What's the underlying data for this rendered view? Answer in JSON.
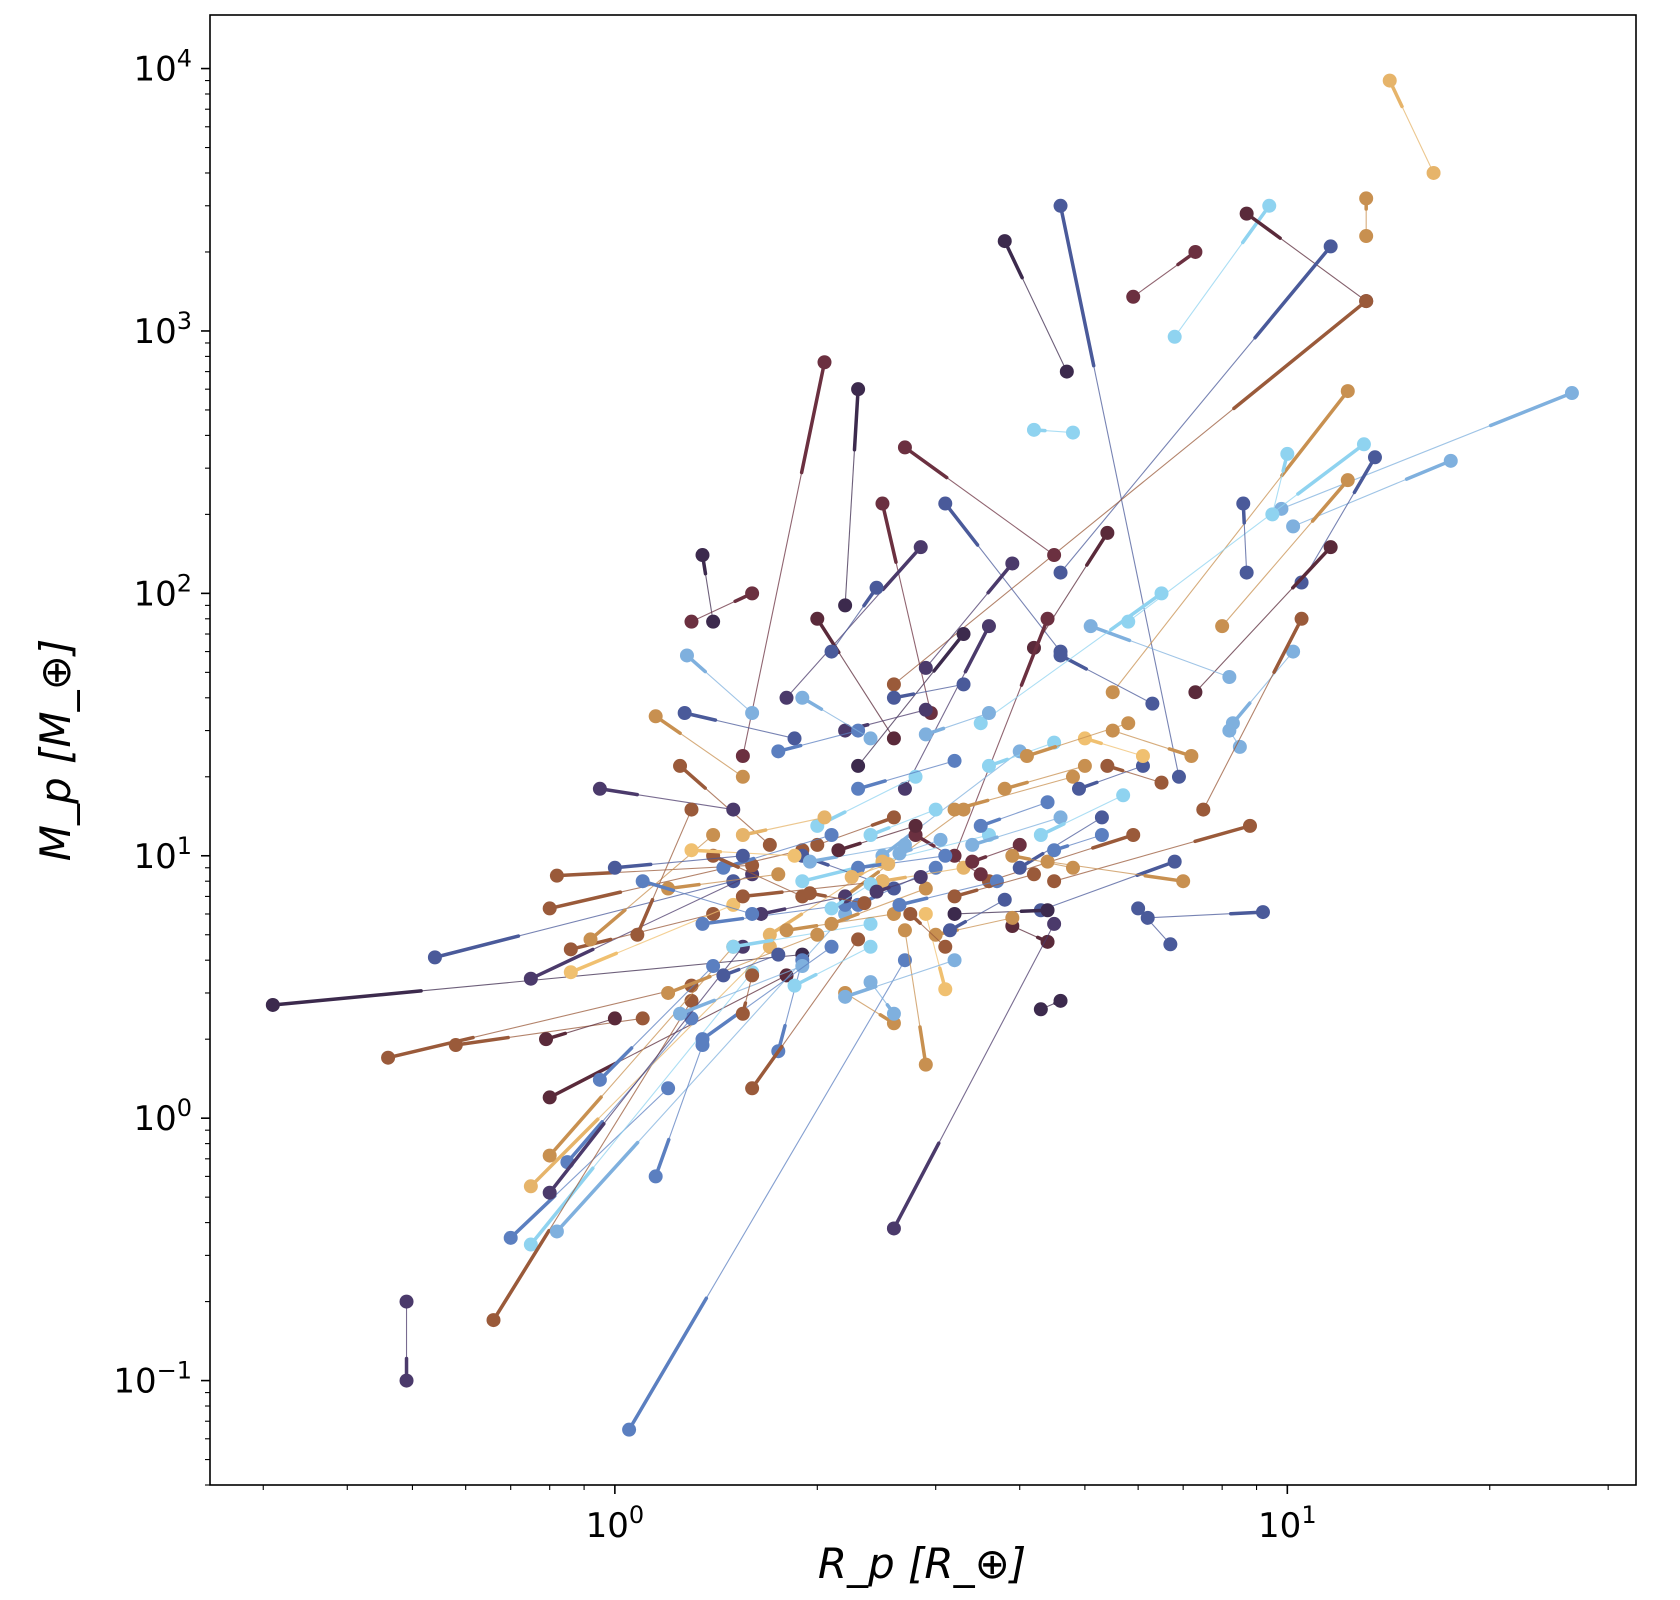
{
  "chart_data": {
    "type": "scatter",
    "subtype": "connected-pairs",
    "title": "",
    "xlabel": "R_p [R_⊕]",
    "ylabel": "M_p [M_⊕]",
    "xscale": "log",
    "yscale": "log",
    "xlim": [
      0.25,
      33
    ],
    "ylim": [
      0.04,
      16000
    ],
    "grid": false,
    "legend": "none",
    "x_ticks": [
      {
        "value": 1,
        "base": "10",
        "exp": "0"
      },
      {
        "value": 10,
        "base": "10",
        "exp": "1"
      }
    ],
    "y_ticks": [
      {
        "value": 0.1,
        "base": "10",
        "exp": "−1"
      },
      {
        "value": 1,
        "base": "10",
        "exp": "0"
      },
      {
        "value": 10,
        "base": "10",
        "exp": "1"
      },
      {
        "value": 100,
        "base": "10",
        "exp": "2"
      },
      {
        "value": 1000,
        "base": "10",
        "exp": "3"
      },
      {
        "value": 10000,
        "base": "10",
        "exp": "4"
      }
    ],
    "palette": [
      "#3c2a4d",
      "#4b3a6b",
      "#4a5a9a",
      "#5b7fc0",
      "#7fb0de",
      "#8fd3f0",
      "#e6b46a",
      "#f0c070",
      "#c89050",
      "#9a5a3a",
      "#6b3040",
      "#5a2a3a"
    ],
    "pairs": [
      {
        "x1": 14.2,
        "y1": 9000,
        "x2": 16.5,
        "y2": 4000,
        "color": "#e6b46a"
      },
      {
        "x1": 13.1,
        "y1": 3200,
        "x2": 13.1,
        "y2": 2300,
        "color": "#c89050"
      },
      {
        "x1": 4.6,
        "y1": 3000,
        "x2": 6.9,
        "y2": 20,
        "color": "#4a5a9a"
      },
      {
        "x1": 9.4,
        "y1": 3000,
        "x2": 6.8,
        "y2": 950,
        "color": "#8fd3f0"
      },
      {
        "x1": 8.7,
        "y1": 2800,
        "x2": 13.1,
        "y2": 1300,
        "color": "#5a2a3a"
      },
      {
        "x1": 3.8,
        "y1": 2200,
        "x2": 4.7,
        "y2": 700,
        "color": "#3c2a4d"
      },
      {
        "x1": 7.3,
        "y1": 2000,
        "x2": 5.9,
        "y2": 1350,
        "color": "#6b3040"
      },
      {
        "x1": 11.6,
        "y1": 2100,
        "x2": 4.6,
        "y2": 120,
        "color": "#4a5a9a"
      },
      {
        "x1": 13.1,
        "y1": 1300,
        "x2": 2.6,
        "y2": 45,
        "color": "#9a5a3a"
      },
      {
        "x1": 2.05,
        "y1": 760,
        "x2": 1.55,
        "y2": 24,
        "color": "#6b3040"
      },
      {
        "x1": 2.3,
        "y1": 600,
        "x2": 2.2,
        "y2": 90,
        "color": "#3c2a4d"
      },
      {
        "x1": 4.2,
        "y1": 420,
        "x2": 4.8,
        "y2": 410,
        "color": "#8fd3f0"
      },
      {
        "x1": 12.3,
        "y1": 590,
        "x2": 5.5,
        "y2": 42,
        "color": "#c89050"
      },
      {
        "x1": 26.5,
        "y1": 580,
        "x2": 9.8,
        "y2": 210,
        "color": "#7fb0de"
      },
      {
        "x1": 17.5,
        "y1": 320,
        "x2": 10.2,
        "y2": 180,
        "color": "#7fb0de"
      },
      {
        "x1": 13.5,
        "y1": 330,
        "x2": 10.5,
        "y2": 110,
        "color": "#4a5a9a"
      },
      {
        "x1": 13.0,
        "y1": 370,
        "x2": 5.8,
        "y2": 78,
        "color": "#8fd3f0"
      },
      {
        "x1": 10.0,
        "y1": 340,
        "x2": 9.5,
        "y2": 200,
        "color": "#8fd3f0"
      },
      {
        "x1": 12.3,
        "y1": 270,
        "x2": 8.0,
        "y2": 75,
        "color": "#c89050"
      },
      {
        "x1": 2.7,
        "y1": 360,
        "x2": 4.5,
        "y2": 140,
        "color": "#6b3040"
      },
      {
        "x1": 3.1,
        "y1": 220,
        "x2": 4.6,
        "y2": 60,
        "color": "#4a5a9a"
      },
      {
        "x1": 2.5,
        "y1": 220,
        "x2": 2.95,
        "y2": 35,
        "color": "#6b3040"
      },
      {
        "x1": 8.6,
        "y1": 220,
        "x2": 8.7,
        "y2": 120,
        "color": "#4a5a9a"
      },
      {
        "x1": 11.6,
        "y1": 150,
        "x2": 7.3,
        "y2": 42,
        "color": "#5a2a3a"
      },
      {
        "x1": 1.35,
        "y1": 140,
        "x2": 1.4,
        "y2": 78,
        "color": "#3c2a4d"
      },
      {
        "x1": 1.6,
        "y1": 100,
        "x2": 1.3,
        "y2": 78,
        "color": "#6b3040"
      },
      {
        "x1": 2.85,
        "y1": 150,
        "x2": 1.8,
        "y2": 40,
        "color": "#4b3a6b"
      },
      {
        "x1": 3.9,
        "y1": 130,
        "x2": 2.9,
        "y2": 52,
        "color": "#4b3a6b"
      },
      {
        "x1": 5.4,
        "y1": 170,
        "x2": 4.2,
        "y2": 62,
        "color": "#5a2a3a"
      },
      {
        "x1": 1.28,
        "y1": 58,
        "x2": 1.6,
        "y2": 35,
        "color": "#7fb0de"
      },
      {
        "x1": 1.27,
        "y1": 35,
        "x2": 1.85,
        "y2": 28,
        "color": "#4a5a9a"
      },
      {
        "x1": 1.15,
        "y1": 34,
        "x2": 1.55,
        "y2": 20,
        "color": "#c89050"
      },
      {
        "x1": 1.25,
        "y1": 22,
        "x2": 1.7,
        "y2": 11,
        "color": "#9a5a3a"
      },
      {
        "x1": 0.95,
        "y1": 18,
        "x2": 1.5,
        "y2": 15,
        "color": "#4b3a6b"
      },
      {
        "x1": 2.0,
        "y1": 80,
        "x2": 2.6,
        "y2": 28,
        "color": "#5a2a3a"
      },
      {
        "x1": 3.3,
        "y1": 70,
        "x2": 2.3,
        "y2": 22,
        "color": "#3c2a4d"
      },
      {
        "x1": 2.45,
        "y1": 105,
        "x2": 2.1,
        "y2": 60,
        "color": "#4a5a9a"
      },
      {
        "x1": 3.6,
        "y1": 75,
        "x2": 2.7,
        "y2": 18,
        "color": "#4b3a6b"
      },
      {
        "x1": 4.4,
        "y1": 80,
        "x2": 3.2,
        "y2": 10,
        "color": "#6b3040"
      },
      {
        "x1": 4.6,
        "y1": 58,
        "x2": 6.3,
        "y2": 38,
        "color": "#4a5a9a"
      },
      {
        "x1": 5.1,
        "y1": 75,
        "x2": 8.2,
        "y2": 48,
        "color": "#7fb0de"
      },
      {
        "x1": 6.5,
        "y1": 100,
        "x2": 3.5,
        "y2": 32,
        "color": "#8fd3f0"
      },
      {
        "x1": 8.3,
        "y1": 32,
        "x2": 10.2,
        "y2": 60,
        "color": "#7fb0de"
      },
      {
        "x1": 8.2,
        "y1": 30,
        "x2": 8.5,
        "y2": 26,
        "color": "#7fb0de"
      },
      {
        "x1": 7.2,
        "y1": 24,
        "x2": 5.5,
        "y2": 30,
        "color": "#c89050"
      },
      {
        "x1": 10.5,
        "y1": 80,
        "x2": 7.5,
        "y2": 15,
        "color": "#9a5a3a"
      },
      {
        "x1": 5.9,
        "y1": 12,
        "x2": 3.6,
        "y2": 8,
        "color": "#9a5a3a"
      },
      {
        "x1": 8.8,
        "y1": 13,
        "x2": 4.5,
        "y2": 8,
        "color": "#9a5a3a"
      },
      {
        "x1": 6.8,
        "y1": 9.5,
        "x2": 4.3,
        "y2": 6.2,
        "color": "#4a5a9a"
      },
      {
        "x1": 7.0,
        "y1": 8.0,
        "x2": 4.4,
        "y2": 9.5,
        "color": "#c89050"
      },
      {
        "x1": 6.0,
        "y1": 6.3,
        "x2": 6.7,
        "y2": 4.6,
        "color": "#4a5a9a"
      },
      {
        "x1": 9.2,
        "y1": 6.1,
        "x2": 6.2,
        "y2": 5.8,
        "color": "#4a5a9a"
      },
      {
        "x1": 4.4,
        "y1": 6.2,
        "x2": 3.2,
        "y2": 6.0,
        "color": "#3c2a4d"
      },
      {
        "x1": 4.4,
        "y1": 4.7,
        "x2": 3.9,
        "y2": 5.4,
        "color": "#5a2a3a"
      },
      {
        "x1": 4.6,
        "y1": 2.8,
        "x2": 4.3,
        "y2": 2.6,
        "color": "#3c2a4d"
      },
      {
        "x1": 0.31,
        "y1": 2.7,
        "x2": 1.9,
        "y2": 4.2,
        "color": "#3c2a4d"
      },
      {
        "x1": 0.54,
        "y1": 4.1,
        "x2": 1.5,
        "y2": 8.0,
        "color": "#4a5a9a"
      },
      {
        "x1": 0.75,
        "y1": 3.4,
        "x2": 1.6,
        "y2": 8.5,
        "color": "#4b3a6b"
      },
      {
        "x1": 0.46,
        "y1": 1.7,
        "x2": 1.3,
        "y2": 3.2,
        "color": "#9a5a3a"
      },
      {
        "x1": 0.58,
        "y1": 1.9,
        "x2": 1.1,
        "y2": 2.4,
        "color": "#9a5a3a"
      },
      {
        "x1": 0.8,
        "y1": 1.2,
        "x2": 1.8,
        "y2": 3.5,
        "color": "#5a2a3a"
      },
      {
        "x1": 0.79,
        "y1": 2.0,
        "x2": 1.0,
        "y2": 2.4,
        "color": "#5a2a3a"
      },
      {
        "x1": 0.82,
        "y1": 8.4,
        "x2": 1.6,
        "y2": 9.2,
        "color": "#9a5a3a"
      },
      {
        "x1": 0.8,
        "y1": 6.3,
        "x2": 1.9,
        "y2": 10.5,
        "color": "#9a5a3a"
      },
      {
        "x1": 0.86,
        "y1": 4.4,
        "x2": 1.4,
        "y2": 6.0,
        "color": "#9a5a3a"
      },
      {
        "x1": 0.86,
        "y1": 3.6,
        "x2": 1.5,
        "y2": 6.5,
        "color": "#f0c070"
      },
      {
        "x1": 0.92,
        "y1": 4.8,
        "x2": 1.4,
        "y2": 12,
        "color": "#c89050"
      },
      {
        "x1": 1.08,
        "y1": 5.0,
        "x2": 1.3,
        "y2": 15,
        "color": "#9a5a3a"
      },
      {
        "x1": 0.49,
        "y1": 0.1,
        "x2": 0.49,
        "y2": 0.2,
        "color": "#4b3a6b"
      },
      {
        "x1": 1.05,
        "y1": 0.065,
        "x2": 2.7,
        "y2": 4.0,
        "color": "#5b7fc0"
      },
      {
        "x1": 2.6,
        "y1": 0.38,
        "x2": 4.5,
        "y2": 5.5,
        "color": "#4b3a6b"
      },
      {
        "x1": 0.7,
        "y1": 0.35,
        "x2": 1.2,
        "y2": 1.3,
        "color": "#5b7fc0"
      },
      {
        "x1": 0.75,
        "y1": 0.33,
        "x2": 1.6,
        "y2": 3.6,
        "color": "#8fd3f0"
      },
      {
        "x1": 0.66,
        "y1": 0.17,
        "x2": 1.3,
        "y2": 2.8,
        "color": "#9a5a3a"
      },
      {
        "x1": 0.75,
        "y1": 0.55,
        "x2": 1.7,
        "y2": 4.5,
        "color": "#e6b46a"
      },
      {
        "x1": 0.8,
        "y1": 0.72,
        "x2": 1.5,
        "y2": 4.5,
        "color": "#c89050"
      },
      {
        "x1": 0.85,
        "y1": 0.68,
        "x2": 1.3,
        "y2": 2.4,
        "color": "#5b7fc0"
      },
      {
        "x1": 0.8,
        "y1": 0.52,
        "x2": 1.55,
        "y2": 4.5,
        "color": "#4b3a6b"
      },
      {
        "x1": 0.82,
        "y1": 0.37,
        "x2": 2.2,
        "y2": 6.0,
        "color": "#7fb0de"
      },
      {
        "x1": 1.15,
        "y1": 0.6,
        "x2": 1.35,
        "y2": 1.9,
        "color": "#5b7fc0"
      },
      {
        "x1": 1.75,
        "y1": 1.8,
        "x2": 1.9,
        "y2": 4.0,
        "color": "#5b7fc0"
      },
      {
        "x1": 0.95,
        "y1": 1.4,
        "x2": 1.4,
        "y2": 3.8,
        "color": "#5b7fc0"
      },
      {
        "x1": 1.6,
        "y1": 1.3,
        "x2": 2.3,
        "y2": 4.8,
        "color": "#9a5a3a"
      },
      {
        "x1": 2.9,
        "y1": 1.6,
        "x2": 2.7,
        "y2": 5.2,
        "color": "#c89050"
      },
      {
        "x1": 3.1,
        "y1": 3.1,
        "x2": 2.9,
        "y2": 6.0,
        "color": "#f0c070"
      },
      {
        "x1": 2.6,
        "y1": 2.3,
        "x2": 2.2,
        "y2": 3.0,
        "color": "#c89050"
      },
      {
        "x1": 2.6,
        "y1": 2.5,
        "x2": 2.4,
        "y2": 3.3,
        "color": "#7fb0de"
      },
      {
        "x1": 2.2,
        "y1": 2.9,
        "x2": 3.2,
        "y2": 4.0,
        "color": "#7fb0de"
      },
      {
        "x1": 1.9,
        "y1": 8.0,
        "x2": 3.6,
        "y2": 12,
        "color": "#8fd3f0"
      },
      {
        "x1": 2.2,
        "y1": 7.0,
        "x2": 3.3,
        "y2": 15,
        "color": "#c89050"
      },
      {
        "x1": 2.5,
        "y1": 10,
        "x2": 4.0,
        "y2": 25,
        "color": "#7fb0de"
      },
      {
        "x1": 2.0,
        "y1": 13,
        "x2": 2.8,
        "y2": 20,
        "color": "#8fd3f0"
      },
      {
        "x1": 2.3,
        "y1": 6.5,
        "x2": 3.0,
        "y2": 9.0,
        "color": "#5b7fc0"
      },
      {
        "x1": 1.7,
        "y1": 5.0,
        "x2": 2.5,
        "y2": 9.5,
        "color": "#e6b46a"
      },
      {
        "x1": 1.9,
        "y1": 10,
        "x2": 2.6,
        "y2": 7.5,
        "color": "#4a5a9a"
      },
      {
        "x1": 2.8,
        "y1": 12,
        "x2": 3.5,
        "y2": 8.5,
        "color": "#6b3040"
      },
      {
        "x1": 3.4,
        "y1": 11,
        "x2": 4.6,
        "y2": 14,
        "color": "#7fb0de"
      },
      {
        "x1": 3.6,
        "y1": 22,
        "x2": 4.5,
        "y2": 27,
        "color": "#8fd3f0"
      },
      {
        "x1": 3.2,
        "y1": 15,
        "x2": 4.8,
        "y2": 20,
        "color": "#c89050"
      },
      {
        "x1": 4.0,
        "y1": 9.0,
        "x2": 5.3,
        "y2": 14,
        "color": "#4a5a9a"
      },
      {
        "x1": 2.3,
        "y1": 18,
        "x2": 3.2,
        "y2": 23,
        "color": "#5b7fc0"
      },
      {
        "x1": 2.6,
        "y1": 14,
        "x2": 2.0,
        "y2": 11,
        "color": "#9a5a3a"
      },
      {
        "x1": 1.45,
        "y1": 9.0,
        "x2": 2.1,
        "y2": 12,
        "color": "#5b7fc0"
      },
      {
        "x1": 1.55,
        "y1": 7.0,
        "x2": 2.5,
        "y2": 8.0,
        "color": "#9a5a3a"
      },
      {
        "x1": 1.35,
        "y1": 5.5,
        "x2": 2.2,
        "y2": 6.5,
        "color": "#5b7fc0"
      },
      {
        "x1": 1.5,
        "y1": 4.5,
        "x2": 2.4,
        "y2": 5.5,
        "color": "#8fd3f0"
      },
      {
        "x1": 1.2,
        "y1": 3.0,
        "x2": 2.0,
        "y2": 5.0,
        "color": "#c89050"
      },
      {
        "x1": 1.25,
        "y1": 2.5,
        "x2": 1.9,
        "y2": 3.8,
        "color": "#7fb0de"
      },
      {
        "x1": 1.35,
        "y1": 2.0,
        "x2": 2.1,
        "y2": 4.5,
        "color": "#5b7fc0"
      },
      {
        "x1": 1.55,
        "y1": 2.5,
        "x2": 1.6,
        "y2": 3.5,
        "color": "#9a5a3a"
      },
      {
        "x1": 1.45,
        "y1": 3.5,
        "x2": 1.75,
        "y2": 4.2,
        "color": "#4a5a9a"
      },
      {
        "x1": 1.85,
        "y1": 3.2,
        "x2": 2.4,
        "y2": 4.5,
        "color": "#8fd3f0"
      },
      {
        "x1": 2.1,
        "y1": 5.5,
        "x2": 2.9,
        "y2": 7.5,
        "color": "#c89050"
      },
      {
        "x1": 2.3,
        "y1": 9.0,
        "x2": 3.1,
        "y2": 10,
        "color": "#5b7fc0"
      },
      {
        "x1": 2.5,
        "y1": 8.0,
        "x2": 3.3,
        "y2": 9.0,
        "color": "#e6b46a"
      },
      {
        "x1": 1.65,
        "y1": 6.0,
        "x2": 2.2,
        "y2": 7.0,
        "color": "#4b3a6b"
      },
      {
        "x1": 1.8,
        "y1": 5.2,
        "x2": 2.6,
        "y2": 6.0,
        "color": "#c89050"
      },
      {
        "x1": 1.95,
        "y1": 9.5,
        "x2": 2.7,
        "y2": 11,
        "color": "#7fb0de"
      },
      {
        "x1": 2.15,
        "y1": 10.5,
        "x2": 2.8,
        "y2": 13,
        "color": "#5a2a3a"
      },
      {
        "x1": 2.4,
        "y1": 12,
        "x2": 3.0,
        "y2": 15,
        "color": "#8fd3f0"
      },
      {
        "x1": 2.65,
        "y1": 6.5,
        "x2": 3.7,
        "y2": 8.0,
        "color": "#5b7fc0"
      },
      {
        "x1": 3.0,
        "y1": 5.0,
        "x2": 3.9,
        "y2": 5.8,
        "color": "#c89050"
      },
      {
        "x1": 3.2,
        "y1": 7.0,
        "x2": 4.2,
        "y2": 8.5,
        "color": "#9a5a3a"
      },
      {
        "x1": 3.5,
        "y1": 13,
        "x2": 4.4,
        "y2": 16,
        "color": "#5b7fc0"
      },
      {
        "x1": 3.8,
        "y1": 18,
        "x2": 5.0,
        "y2": 22,
        "color": "#c89050"
      },
      {
        "x1": 4.3,
        "y1": 12,
        "x2": 5.7,
        "y2": 17,
        "color": "#8fd3f0"
      },
      {
        "x1": 4.9,
        "y1": 18,
        "x2": 6.1,
        "y2": 22,
        "color": "#4a5a9a"
      },
      {
        "x1": 5.4,
        "y1": 22,
        "x2": 6.5,
        "y2": 19,
        "color": "#9a5a3a"
      },
      {
        "x1": 5.0,
        "y1": 28,
        "x2": 6.1,
        "y2": 24,
        "color": "#f0c070"
      },
      {
        "x1": 4.1,
        "y1": 24,
        "x2": 5.8,
        "y2": 32,
        "color": "#c89050"
      },
      {
        "x1": 2.9,
        "y1": 29,
        "x2": 3.6,
        "y2": 35,
        "color": "#7fb0de"
      },
      {
        "x1": 2.2,
        "y1": 30,
        "x2": 2.9,
        "y2": 36,
        "color": "#4b3a6b"
      },
      {
        "x1": 1.75,
        "y1": 25,
        "x2": 2.3,
        "y2": 30,
        "color": "#5b7fc0"
      },
      {
        "x1": 1.9,
        "y1": 40,
        "x2": 2.4,
        "y2": 28,
        "color": "#7fb0de"
      },
      {
        "x1": 2.6,
        "y1": 40,
        "x2": 3.3,
        "y2": 45,
        "color": "#4a5a9a"
      },
      {
        "x1": 1.4,
        "y1": 10,
        "x2": 1.9,
        "y2": 7.0,
        "color": "#9a5a3a"
      },
      {
        "x1": 1.55,
        "y1": 12,
        "x2": 2.05,
        "y2": 14,
        "color": "#e6b46a"
      },
      {
        "x1": 1.2,
        "y1": 7.5,
        "x2": 1.75,
        "y2": 8.5,
        "color": "#c89050"
      },
      {
        "x1": 1.3,
        "y1": 10.5,
        "x2": 1.85,
        "y2": 10,
        "color": "#f0c070"
      },
      {
        "x1": 1.1,
        "y1": 8.0,
        "x2": 1.6,
        "y2": 6.0,
        "color": "#5b7fc0"
      },
      {
        "x1": 1.0,
        "y1": 9.0,
        "x2": 1.55,
        "y2": 10.0,
        "color": "#4a5a9a"
      },
      {
        "x1": 2.75,
        "y1": 6.0,
        "x2": 3.1,
        "y2": 4.5,
        "color": "#9a5a3a"
      },
      {
        "x1": 3.15,
        "y1": 5.2,
        "x2": 3.8,
        "y2": 6.8,
        "color": "#4a5a9a"
      },
      {
        "x1": 3.4,
        "y1": 9.5,
        "x2": 4.0,
        "y2": 11,
        "color": "#6b3040"
      },
      {
        "x1": 3.9,
        "y1": 10,
        "x2": 4.8,
        "y2": 9.0,
        "color": "#c89050"
      },
      {
        "x1": 4.5,
        "y1": 10.5,
        "x2": 5.3,
        "y2": 12,
        "color": "#5b7fc0"
      },
      {
        "x1": 2.1,
        "y1": 6.3,
        "x2": 2.4,
        "y2": 7.8,
        "color": "#8fd3f0"
      },
      {
        "x1": 2.45,
        "y1": 7.3,
        "x2": 2.85,
        "y2": 8.3,
        "color": "#4b3a6b"
      },
      {
        "x1": 2.25,
        "y1": 8.3,
        "x2": 2.55,
        "y2": 9.3,
        "color": "#e6b46a"
      },
      {
        "x1": 1.95,
        "y1": 7.2,
        "x2": 2.35,
        "y2": 6.6,
        "color": "#9a5a3a"
      },
      {
        "x1": 2.65,
        "y1": 10.2,
        "x2": 3.05,
        "y2": 11.5,
        "color": "#7fb0de"
      }
    ]
  }
}
